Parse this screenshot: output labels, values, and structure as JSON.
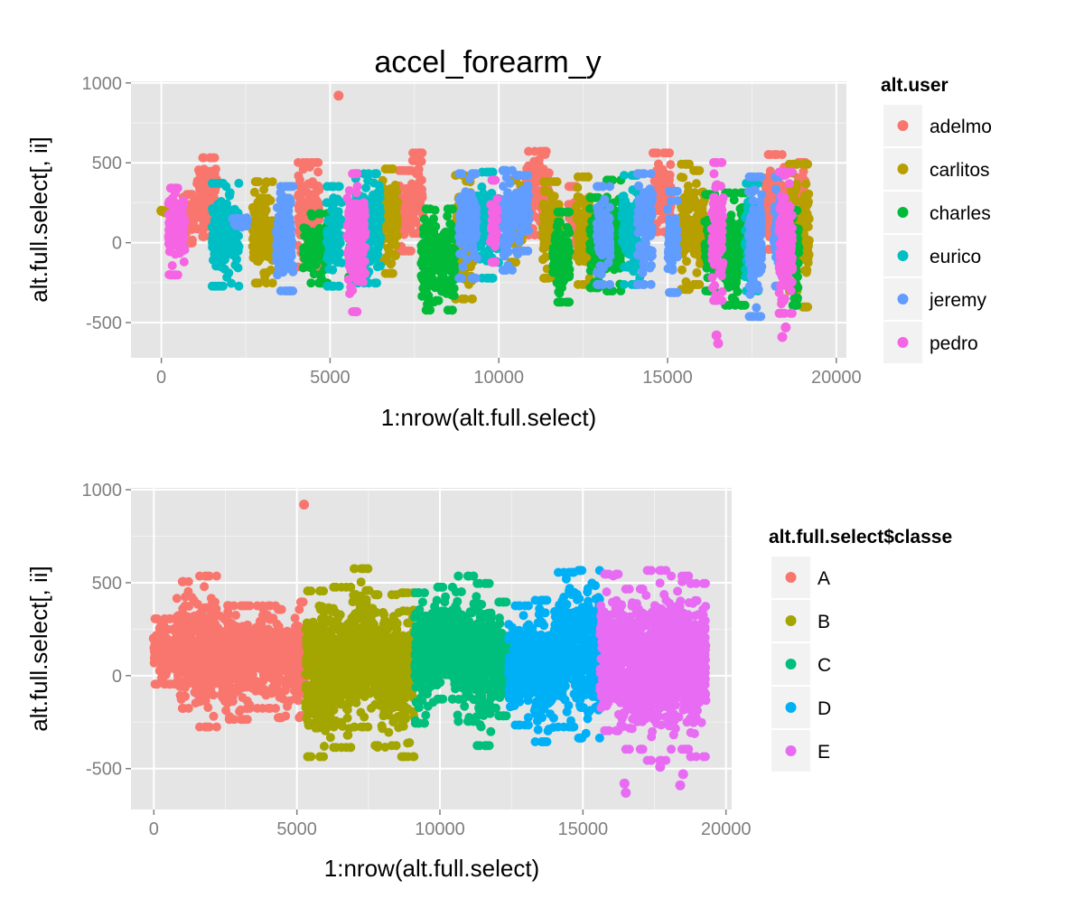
{
  "chart_data": [
    {
      "type": "scatter",
      "title": "accel_forearm_y",
      "xlabel": "1:nrow(alt.full.select)",
      "ylabel": "alt.full.select[, ii]",
      "xlim": [
        -900,
        20300
      ],
      "ylim": [
        -720,
        1010
      ],
      "xticks": [
        0,
        5000,
        10000,
        15000,
        20000
      ],
      "xtick_labels": [
        "0",
        "5000",
        "10000",
        "15000",
        "20000"
      ],
      "yticks": [
        -500,
        0,
        500,
        1000
      ],
      "ytick_labels": [
        "-500",
        "0",
        "500",
        "1000"
      ],
      "grid": true,
      "legend_title": "alt.user",
      "legend_position": "right",
      "series": [
        {
          "name": "adelmo",
          "color": "#F8766D",
          "segments": [
            [
              600,
              1050,
              -30,
              330
            ],
            [
              1050,
              1650,
              10,
              560
            ],
            [
              4050,
              4700,
              -180,
              530
            ],
            [
              7000,
              7400,
              -80,
              480
            ],
            [
              7400,
              7750,
              30,
              590
            ],
            [
              10800,
              11500,
              20,
              600
            ],
            [
              12050,
              12300,
              -100,
              380
            ],
            [
              14550,
              15100,
              40,
              590
            ],
            [
              17900,
              18400,
              -70,
              580
            ],
            [
              18400,
              18600,
              -60,
              500
            ],
            [
              18850,
              19100,
              0,
              530
            ]
          ],
          "points": [
            [
              5250,
              920
            ]
          ]
        },
        {
          "name": "carlitos",
          "color": "#B79F00",
          "segments": [
            [
              2700,
              3300,
              -280,
              410
            ],
            [
              6500,
              7000,
              -220,
              490
            ],
            [
              8700,
              9250,
              -380,
              450
            ],
            [
              10300,
              10700,
              -150,
              420
            ],
            [
              11300,
              11800,
              -250,
              410
            ],
            [
              12300,
              12700,
              -290,
              440
            ],
            [
              15400,
              15650,
              -320,
              520
            ],
            [
              15750,
              16100,
              -290,
              480
            ],
            [
              18600,
              18850,
              -330,
              520
            ],
            [
              19000,
              19200,
              -430,
              520
            ]
          ],
          "points": [
            [
              0,
              200
            ],
            [
              100,
              190
            ],
            [
              200,
              210
            ]
          ]
        },
        {
          "name": "charles",
          "color": "#00BA38",
          "segments": [
            [
              4200,
              4950,
              -280,
              210
            ],
            [
              5550,
              5850,
              -260,
              210
            ],
            [
              7700,
              8700,
              -450,
              240
            ],
            [
              11600,
              12100,
              -400,
              220
            ],
            [
              12700,
              13200,
              -310,
              310
            ],
            [
              13200,
              13650,
              -330,
              420
            ],
            [
              16100,
              16450,
              -330,
              330
            ],
            [
              16700,
              17300,
              -420,
              340
            ],
            [
              18700,
              18900,
              -420,
              230
            ]
          ],
          "points": []
        },
        {
          "name": "eurico",
          "color": "#00BFC4",
          "segments": [
            [
              1500,
              2300,
              -300,
              400
            ],
            [
              4900,
              5350,
              -300,
              380
            ],
            [
              5750,
              6500,
              -280,
              460
            ],
            [
              9350,
              10000,
              -250,
              470
            ],
            [
              13650,
              14200,
              -290,
              450
            ],
            [
              17300,
              17700,
              -330,
              400
            ]
          ],
          "points": []
        },
        {
          "name": "jeremy",
          "color": "#619CFF",
          "segments": [
            [
              2100,
              2600,
              80,
              180
            ],
            [
              3400,
              3900,
              -330,
              380
            ],
            [
              8800,
              9350,
              -250,
              460
            ],
            [
              10100,
              10400,
              -200,
              480
            ],
            [
              10500,
              10900,
              -80,
              450
            ],
            [
              12900,
              13300,
              -290,
              380
            ],
            [
              14100,
              14550,
              -290,
              460
            ],
            [
              15000,
              15300,
              -340,
              350
            ],
            [
              17400,
              17800,
              -490,
              440
            ],
            [
              18150,
              18350,
              -300,
              440
            ]
          ],
          "points": []
        },
        {
          "name": "pedro",
          "color": "#F564E3",
          "segments": [
            [
              200,
              700,
              -230,
              370
            ],
            [
              5500,
              6050,
              -460,
              460
            ],
            [
              9750,
              9950,
              -150,
              420
            ],
            [
              16300,
              16650,
              -390,
              530
            ],
            [
              18300,
              18700,
              -470,
              470
            ]
          ],
          "points": [
            [
              16450,
              -580
            ],
            [
              16500,
              -630
            ],
            [
              18400,
              -590
            ],
            [
              18500,
              -530
            ]
          ]
        }
      ]
    },
    {
      "type": "scatter",
      "title": "",
      "xlabel": "1:nrow(alt.full.select)",
      "ylabel": "alt.full.select[, ii]",
      "xlim": [
        -800,
        20200
      ],
      "ylim": [
        -720,
        1010
      ],
      "xticks": [
        0,
        5000,
        10000,
        15000,
        20000
      ],
      "xtick_labels": [
        "0",
        "5000",
        "10000",
        "15000",
        "20000"
      ],
      "yticks": [
        -500,
        0,
        500,
        1000
      ],
      "ytick_labels": [
        "-500",
        "0",
        "500",
        "1000"
      ],
      "grid": true,
      "legend_title": "alt.full.select$classe",
      "legend_position": "right",
      "series": [
        {
          "name": "A",
          "color": "#F8766D",
          "segments": [
            [
              0,
              800,
              -70,
              330
            ],
            [
              800,
              1400,
              -200,
              530
            ],
            [
              1400,
              2200,
              -300,
              560
            ],
            [
              2200,
              3300,
              -260,
              400
            ],
            [
              3300,
              4300,
              -200,
              400
            ],
            [
              4300,
              5100,
              -250,
              380
            ],
            [
              5100,
              5300,
              -240,
              420
            ]
          ],
          "points": [
            [
              5250,
              920
            ],
            [
              0,
              200
            ],
            [
              100,
              210
            ]
          ]
        },
        {
          "name": "B",
          "color": "#A3A500",
          "segments": [
            [
              5300,
              6100,
              -460,
              480
            ],
            [
              6100,
              6900,
              -410,
              500
            ],
            [
              6900,
              7700,
              -300,
              600
            ],
            [
              7700,
              8500,
              -400,
              460
            ],
            [
              8500,
              9100,
              -460,
              470
            ]
          ],
          "points": []
        },
        {
          "name": "C",
          "color": "#00BF7D",
          "segments": [
            [
              9100,
              9800,
              -280,
              470
            ],
            [
              9800,
              10500,
              -150,
              500
            ],
            [
              10500,
              11200,
              -270,
              560
            ],
            [
              11200,
              11800,
              -400,
              520
            ],
            [
              11800,
              12400,
              -240,
              420
            ]
          ],
          "points": []
        },
        {
          "name": "D",
          "color": "#00B0F6",
          "segments": [
            [
              12400,
              13200,
              -290,
              400
            ],
            [
              13200,
              14000,
              -380,
              430
            ],
            [
              14000,
              14800,
              -300,
              580
            ],
            [
              14800,
              15600,
              -360,
              590
            ]
          ],
          "points": []
        },
        {
          "name": "E",
          "color": "#E76BF3",
          "segments": [
            [
              15600,
              16400,
              -320,
              570
            ],
            [
              16400,
              17200,
              -420,
              490
            ],
            [
              17200,
              18000,
              -480,
              590
            ],
            [
              18000,
              18700,
              -420,
              560
            ],
            [
              18700,
              19300,
              -460,
              520
            ]
          ],
          "points": [
            [
              16450,
              -580
            ],
            [
              16500,
              -630
            ],
            [
              17700,
              -490
            ],
            [
              18400,
              -590
            ],
            [
              18500,
              -530
            ]
          ]
        }
      ]
    }
  ]
}
